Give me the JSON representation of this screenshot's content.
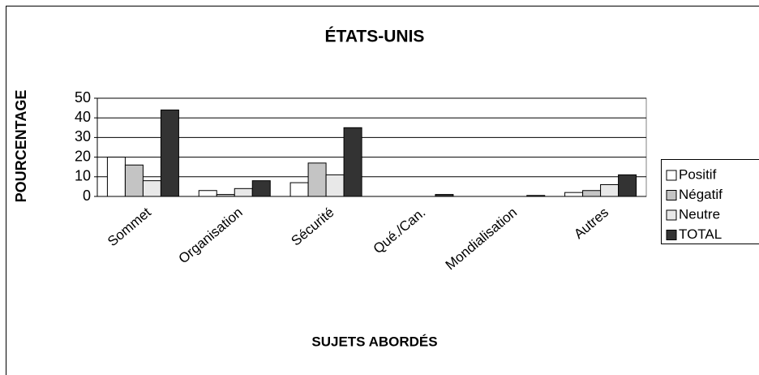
{
  "chart_data": {
    "type": "bar",
    "title": "ÉTATS-UNIS",
    "x_label": "SUJETS ABORDÉS",
    "y_label": "POURCENTAGE",
    "categories": [
      "Sommet",
      "Organisation",
      "Sécurité",
      "Qué./Can.",
      "Mondialisation",
      "Autres"
    ],
    "series": [
      {
        "name": "Positif",
        "color": "#ffffff",
        "values": [
          20,
          3,
          7,
          0,
          0,
          2
        ]
      },
      {
        "name": "Négatif",
        "color": "#c4c4c4",
        "values": [
          16,
          1,
          17,
          0,
          0,
          3
        ]
      },
      {
        "name": "Neutre",
        "color": "#e8e8e8",
        "values": [
          8,
          4,
          11,
          0,
          0,
          6
        ]
      },
      {
        "name": "TOTAL",
        "color": "#333333",
        "values": [
          44,
          8,
          35,
          1,
          0.5,
          11
        ]
      }
    ],
    "ylim": [
      0,
      50
    ],
    "yticks": [
      0,
      10,
      20,
      30,
      40,
      50
    ],
    "grid": true,
    "legend": "right"
  }
}
